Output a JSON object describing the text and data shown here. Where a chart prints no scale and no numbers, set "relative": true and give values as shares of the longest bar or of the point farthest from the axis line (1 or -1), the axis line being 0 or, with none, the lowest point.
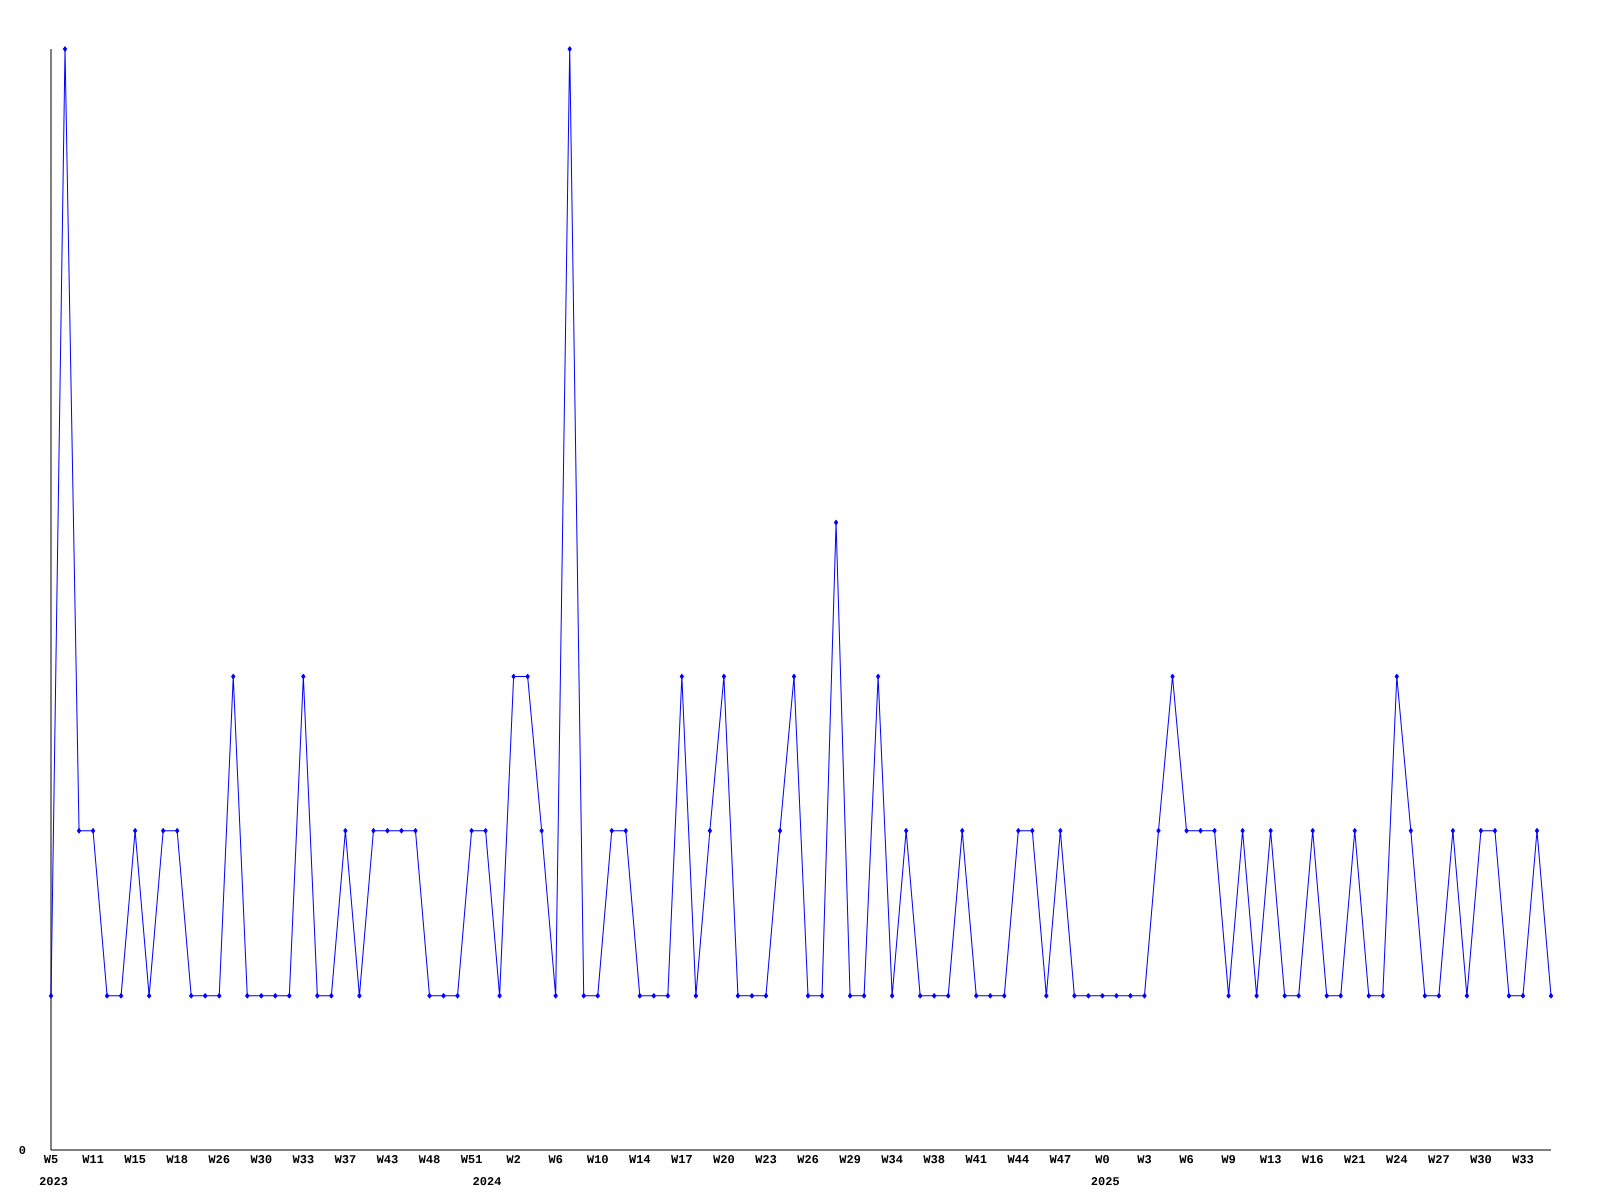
{
  "chart_data": {
    "type": "line",
    "relative": true,
    "color": "#0000ff",
    "marker": "diamond",
    "categories": [
      "W5",
      null,
      null,
      "W11",
      null,
      null,
      "W15",
      null,
      null,
      "W18",
      null,
      null,
      "W26",
      null,
      null,
      "W30",
      null,
      null,
      "W33",
      null,
      null,
      "W37",
      null,
      null,
      "W43",
      null,
      null,
      "W48",
      null,
      null,
      "W51",
      null,
      null,
      "W2",
      null,
      null,
      "W6",
      null,
      null,
      "W10",
      null,
      null,
      "W14",
      null,
      null,
      "W17",
      null,
      null,
      "W20",
      null,
      null,
      "W23",
      null,
      null,
      "W26",
      null,
      null,
      "W29",
      null,
      null,
      "W34",
      null,
      null,
      "W38",
      null,
      null,
      "W41",
      null,
      null,
      "W44",
      null,
      null,
      "W47",
      null,
      null,
      "W0",
      null,
      null,
      "W3",
      null,
      null,
      "W6",
      null,
      null,
      "W9",
      null,
      null,
      "W13",
      null,
      null,
      "W16",
      null,
      null,
      "W21",
      null,
      null,
      "W24",
      null,
      null,
      "W27",
      null,
      null,
      "W30",
      null,
      null,
      "W33",
      null,
      null
    ],
    "values": [
      0.14,
      1,
      0.29,
      0.29,
      0.14,
      0.14,
      0.29,
      0.14,
      0.29,
      0.29,
      0.14,
      0.14,
      0.14,
      0.43,
      0.14,
      0.14,
      0.14,
      0.14,
      0.43,
      0.14,
      0.14,
      0.29,
      0.14,
      0.29,
      0.29,
      0.29,
      0.29,
      0.14,
      0.14,
      0.14,
      0.29,
      0.29,
      0.14,
      0.43,
      0.43,
      0.29,
      0.14,
      1,
      0.14,
      0.14,
      0.29,
      0.29,
      0.14,
      0.14,
      0.14,
      0.43,
      0.14,
      0.29,
      0.43,
      0.14,
      0.14,
      0.14,
      0.29,
      0.43,
      0.14,
      0.14,
      0.57,
      0.14,
      0.14,
      0.43,
      0.14,
      0.29,
      0.14,
      0.14,
      0.14,
      0.29,
      0.14,
      0.14,
      0.14,
      0.29,
      0.29,
      0.14,
      0.29,
      0.14,
      0.14,
      0.14,
      0.14,
      0.14,
      0.14,
      0.29,
      0.43,
      0.29,
      0.29,
      0.29,
      0.14,
      0.29,
      0.14,
      0.29,
      0.14,
      0.14,
      0.29,
      0.14,
      0.14,
      0.29,
      0.14,
      0.14,
      0.43,
      0.29,
      0.14,
      0.14,
      0.29,
      0.14,
      0.29,
      0.29,
      0.14,
      0.14,
      0.29,
      0.14
    ],
    "annotations": [
      "0",
      "2023",
      "2024",
      "2025"
    ]
  }
}
